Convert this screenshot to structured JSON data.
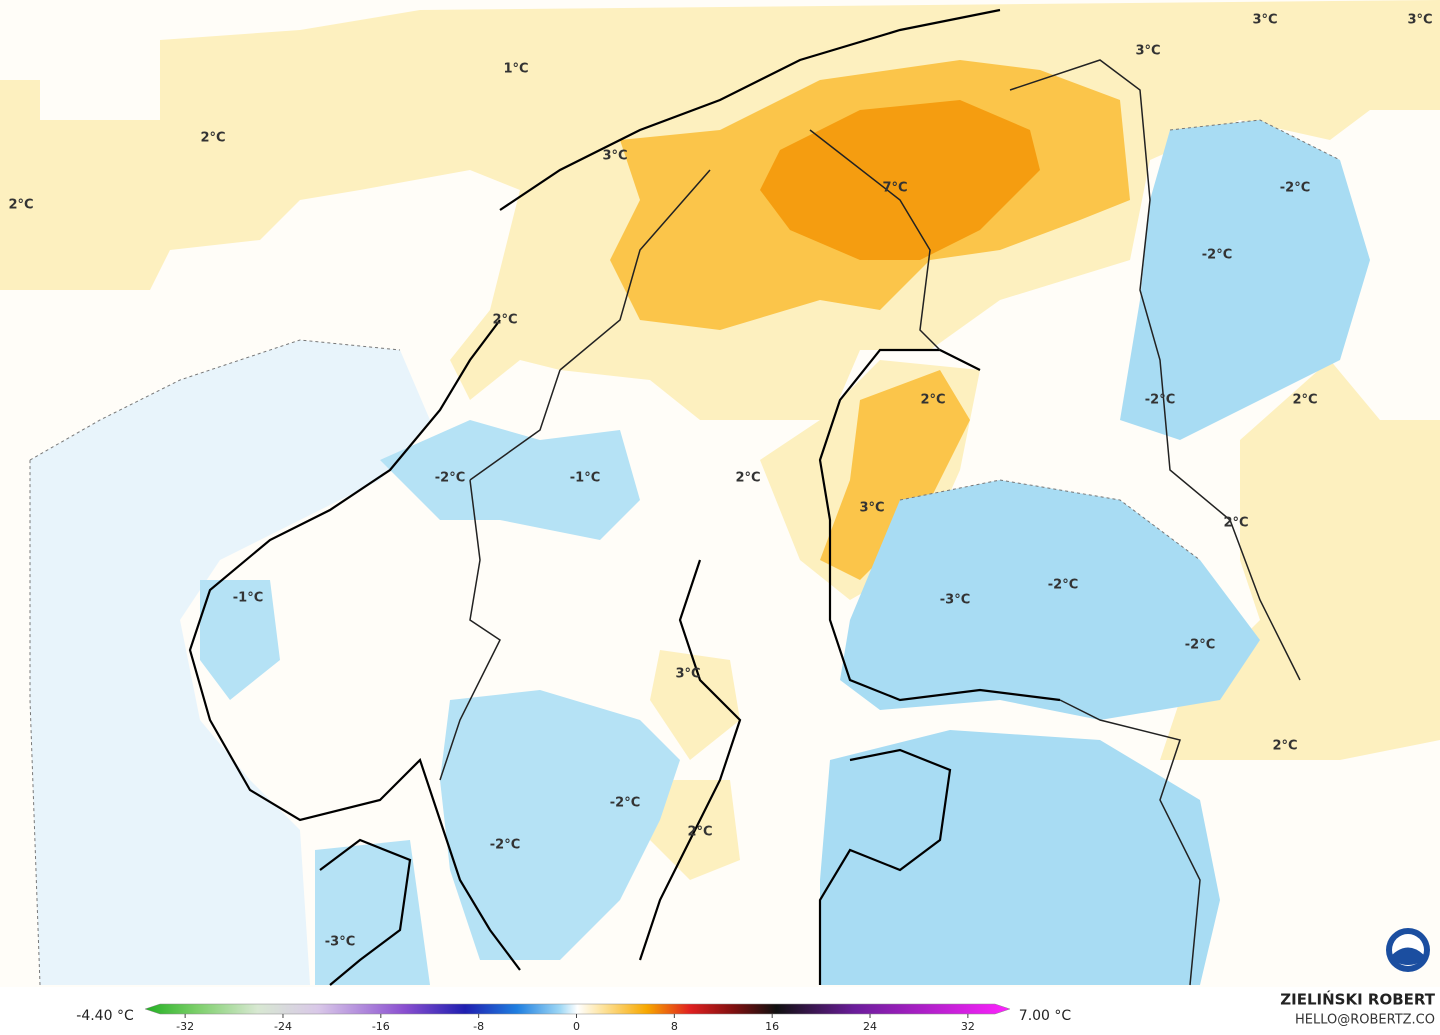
{
  "map": {
    "labels": [
      "1°C",
      "2°C",
      "2°C",
      "3°C",
      "3°C",
      "3°C",
      "3°C",
      "7°C",
      "-2°C",
      "-2°C",
      "2°C",
      "2°C",
      "-2°C",
      "2°C",
      "-2°C",
      "-1°C",
      "2°C",
      "2°C",
      "3°C",
      "-2°C",
      "-3°C",
      "-1°C",
      "-2°C",
      "3°C",
      "2°C",
      "-2°C",
      "2°C",
      "-2°C",
      "-3°C"
    ]
  },
  "colorbar": {
    "min_label": "-4.40 °C",
    "max_label": "7.00 °C",
    "ticks": [
      -32,
      -24,
      -16,
      -8,
      0,
      8,
      16,
      24,
      32
    ]
  },
  "footer": {
    "name": "ZIELIŃSKI ROBERT",
    "email": "HELLO@ROBERTZ.CO"
  }
}
